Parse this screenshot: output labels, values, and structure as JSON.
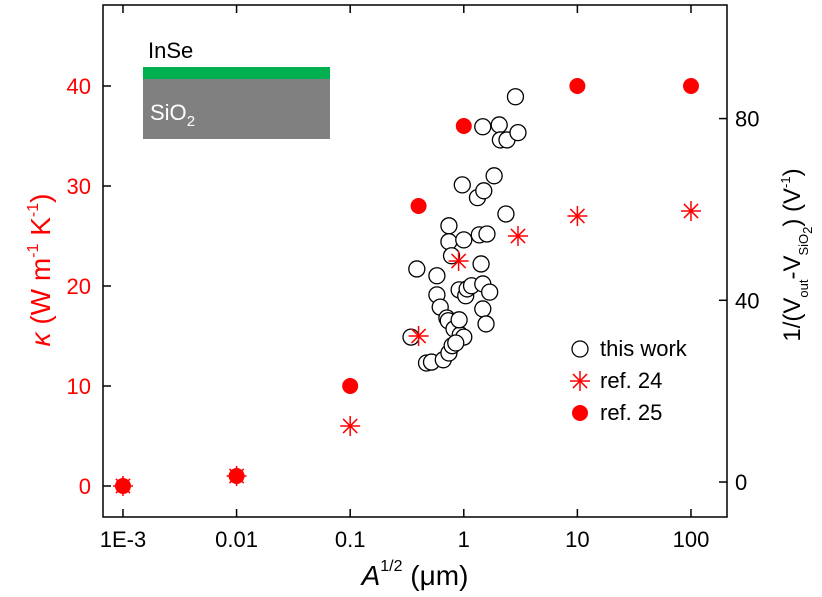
{
  "chart_data": {
    "type": "scatter",
    "xlabel": [
      "A",
      "1/2",
      " (μm)"
    ],
    "ylabel": [
      "κ",
      " (W m",
      "-1",
      " K",
      "-1",
      ")"
    ],
    "y2label": [
      "1/(V",
      "out",
      "-V",
      "SiO",
      "2",
      ")  (V",
      "-1",
      ")"
    ],
    "xscale": "log",
    "xlim": [
      0.000667,
      207.5
    ],
    "xticks": [
      {
        "value": 0.001,
        "label": "1E-3"
      },
      0.01,
      0.1,
      1,
      10,
      100
    ],
    "ylim": [
      -3.1,
      48.1
    ],
    "yticks": [
      0,
      10,
      20,
      30,
      40
    ],
    "y2lim": [
      -7.7,
      105
    ],
    "y2ticks": [
      0,
      40,
      80
    ],
    "ylabel_color": "#ff0000",
    "legend": "lower right",
    "inset": {
      "top_label": "InSe",
      "bottom_label": "SiO",
      "bottom_sub": "2",
      "top_color": "#00b050",
      "bottom_color": "#808080"
    },
    "series": [
      {
        "name": "this work",
        "axis": "y2",
        "marker": "open-circle",
        "color": "#000000",
        "x": [
          0.343,
          0.386,
          0.58,
          0.47,
          0.52,
          0.66,
          0.58,
          0.62,
          0.71,
          0.74,
          0.74,
          0.78,
          0.73,
          0.82,
          0.93,
          1.0,
          0.74,
          0.79,
          0.85,
          0.91,
          0.91,
          1.0,
          0.97,
          1.04,
          1.07,
          1.17,
          1.32,
          1.37,
          1.42,
          1.47,
          1.47,
          1.6,
          1.57,
          1.69,
          1.5,
          1.47,
          1.85,
          2.05,
          2.1,
          2.35,
          2.4,
          3.0,
          2.85
        ],
        "values": [
          31.9,
          46.9,
          45.4,
          26.2,
          26.4,
          26.9,
          41.2,
          38.5,
          36.1,
          56.4,
          52.9,
          49.8,
          35.5,
          33.7,
          32.4,
          31.9,
          28.4,
          30.0,
          30.6,
          35.7,
          42.3,
          53.3,
          65.4,
          41.0,
          42.5,
          43.2,
          62.6,
          54.4,
          48.0,
          43.6,
          38.1,
          54.6,
          34.8,
          41.8,
          64.1,
          78.2,
          67.4,
          78.6,
          75.3,
          59.0,
          75.3,
          76.9,
          84.8
        ]
      },
      {
        "name": "ref. 24",
        "axis": "y",
        "marker": "asterisk",
        "color": "#ff0000",
        "x": [
          0.001,
          0.01,
          0.1,
          0.4,
          0.9,
          3,
          10,
          100
        ],
        "values": [
          0,
          1,
          6,
          15,
          22.5,
          25,
          27,
          27.5
        ]
      },
      {
        "name": "ref. 25",
        "axis": "y",
        "marker": "filled-circle",
        "color": "#ff0000",
        "x": [
          0.001,
          0.01,
          0.1,
          0.4,
          1,
          10,
          100
        ],
        "values": [
          0,
          1,
          10,
          28,
          36,
          40,
          40
        ]
      }
    ]
  }
}
